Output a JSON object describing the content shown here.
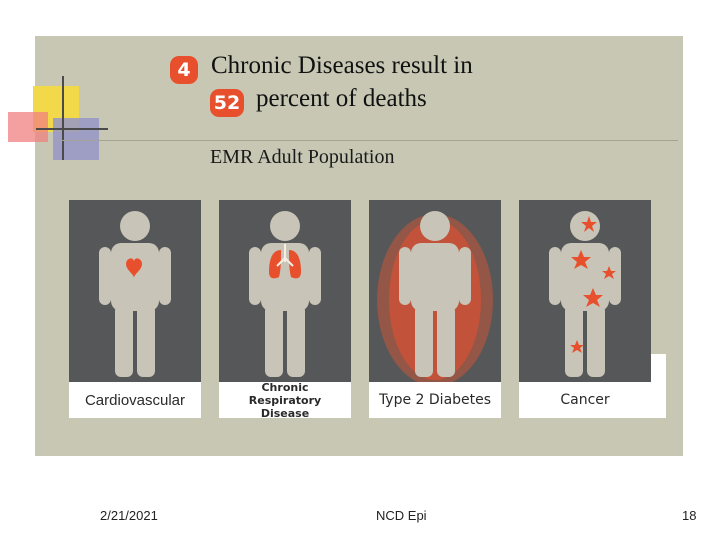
{
  "slide": {
    "title_number_1": "4",
    "title_line_1": "Chronic Diseases result in",
    "title_number_2": "52",
    "title_line_2": "percent of deaths",
    "subtitle": "EMR Adult Population"
  },
  "cards": [
    {
      "label": "Cardiovascular",
      "icon": "heart-icon"
    },
    {
      "label": "Chronic Respiratory Disease",
      "icon": "lungs-icon"
    },
    {
      "label": "Type 2 Diabetes",
      "icon": "body-glow-icon"
    },
    {
      "label": "Cancer",
      "icon": "cancer-marks-icon"
    }
  ],
  "footer": {
    "date": "2/21/2021",
    "center": "NCD Epi",
    "page": "18"
  },
  "colors": {
    "panel": "#c7c7b4",
    "accent": "#e8502d",
    "figure": "#c8c4b7",
    "card_bg": "#555758"
  }
}
